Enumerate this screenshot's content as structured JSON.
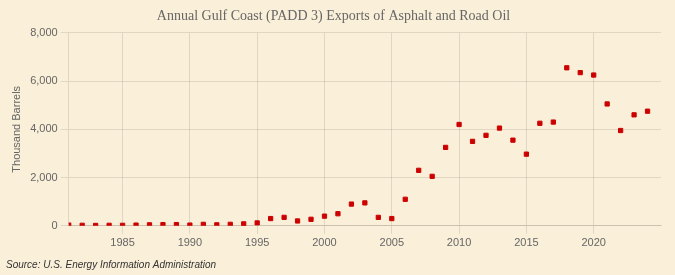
{
  "chart_data": {
    "type": "scatter",
    "title": "Annual Gulf Coast (PADD 3) Exports of Asphalt and Road Oil",
    "ylabel": "Thousand Barrels",
    "annotation": "Source: U.S. Energy Information Administration",
    "color": "#cc0000",
    "marker": "square",
    "grid": true,
    "xlim": [
      1981,
      2025
    ],
    "ylim": [
      0,
      8000
    ],
    "xticks": [
      1985,
      1990,
      1995,
      2000,
      2005,
      2010,
      2015,
      2020
    ],
    "yticks": [
      0,
      {
        "value": 2000,
        "label": "2,000"
      },
      {
        "value": 4000,
        "label": "4,000"
      },
      {
        "value": 6000,
        "label": "6,000"
      },
      {
        "value": 8000,
        "label": "8,000"
      }
    ],
    "x": [
      1981,
      1982,
      1983,
      1984,
      1985,
      1986,
      1987,
      1988,
      1989,
      1990,
      1991,
      1992,
      1993,
      1994,
      1995,
      1996,
      1997,
      1998,
      1999,
      2000,
      2001,
      2002,
      2003,
      2004,
      2005,
      2006,
      2007,
      2008,
      2009,
      2010,
      2011,
      2012,
      2013,
      2014,
      2015,
      2016,
      2017,
      2018,
      2019,
      2020,
      2021,
      2022,
      2023,
      2024
    ],
    "values": [
      30,
      20,
      15,
      20,
      20,
      30,
      40,
      50,
      50,
      30,
      60,
      40,
      60,
      80,
      120,
      300,
      350,
      200,
      270,
      400,
      500,
      900,
      950,
      350,
      300,
      1100,
      2300,
      2050,
      3250,
      4200,
      3500,
      3750,
      4050,
      3550,
      2970,
      4250,
      4300,
      6550,
      6350,
      6250,
      5050,
      3950,
      4600,
      4750
    ]
  }
}
